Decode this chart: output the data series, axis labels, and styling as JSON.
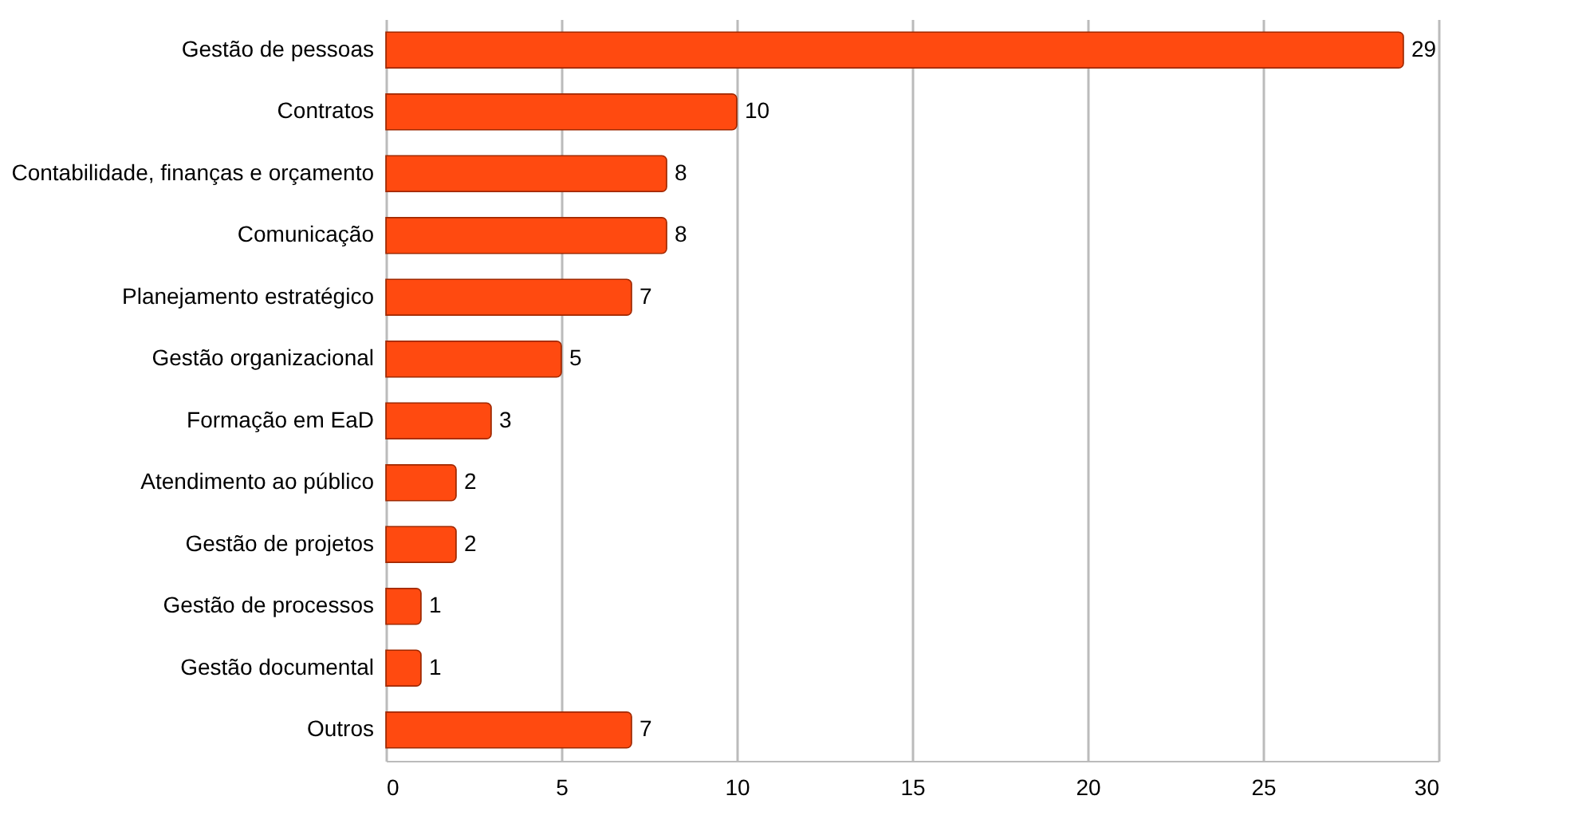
{
  "chart_data": {
    "type": "bar",
    "orientation": "horizontal",
    "categories": [
      "Gestão de pessoas",
      "Contratos",
      "Contabilidade, finanças e orçamento",
      "Comunicação",
      "Planejamento estratégico",
      "Gestão organizacional",
      "Formação em EaD",
      "Atendimento ao público",
      "Gestão de projetos",
      "Gestão de processos",
      "Gestão documental",
      "Outros"
    ],
    "values": [
      29,
      10,
      8,
      8,
      7,
      5,
      3,
      2,
      2,
      1,
      1,
      7
    ],
    "color": "#ff4a10",
    "xlim": [
      0,
      30
    ],
    "xticks": [
      0,
      5,
      10,
      15,
      20,
      25,
      30
    ],
    "grid": "x",
    "data_labels": true
  }
}
